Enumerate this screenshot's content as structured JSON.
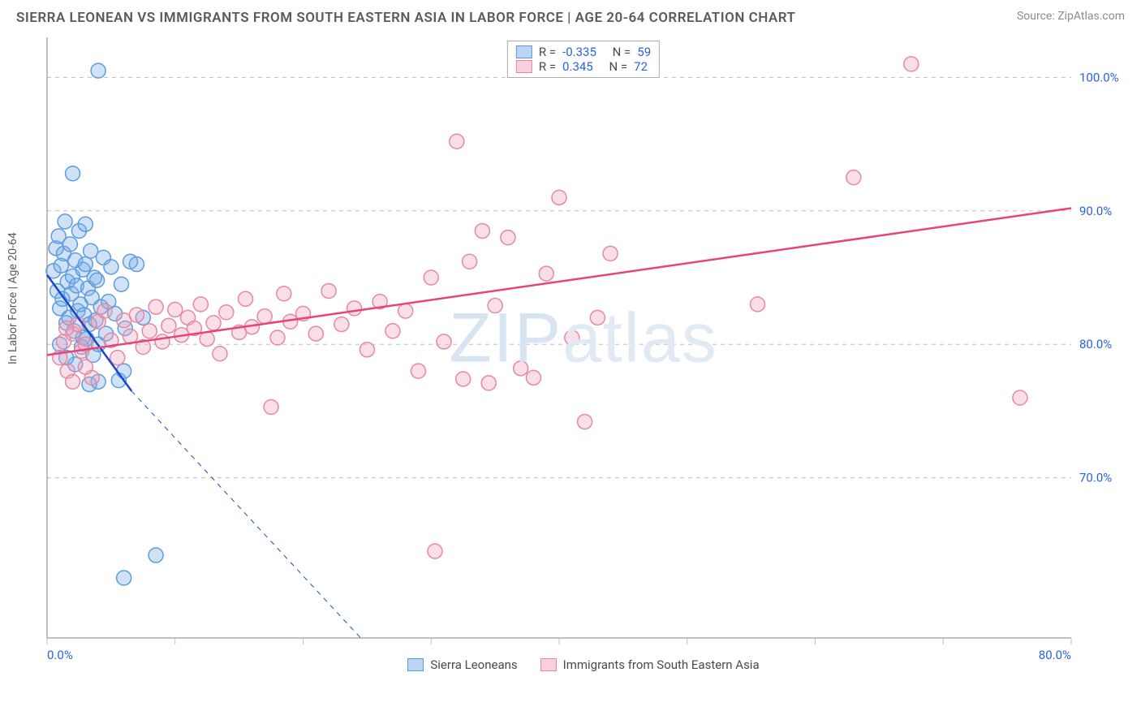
{
  "title": "SIERRA LEONEAN VS IMMIGRANTS FROM SOUTH EASTERN ASIA IN LABOR FORCE | AGE 20-64 CORRELATION CHART",
  "source_label": "Source: ZipAtlas.com",
  "watermark": "ZIPatlas",
  "y_axis_label": "In Labor Force | Age 20-64",
  "chart": {
    "type": "scatter",
    "background_color": "#ffffff",
    "grid_color": "#bfbfbf",
    "grid_dash": "5 5",
    "xlim": [
      0,
      80
    ],
    "ylim": [
      58,
      103
    ],
    "y_gridlines": [
      70,
      80,
      90,
      100
    ],
    "y_tick_labels": [
      "70.0%",
      "80.0%",
      "90.0%",
      "100.0%"
    ],
    "y_tick_fontsize": 15,
    "y_tick_color": "#2863e0",
    "x_ticks": [
      0,
      10,
      20,
      30,
      40,
      50,
      60,
      70,
      80
    ],
    "x_tick_labels_shown": {
      "0": "0.0%",
      "80": "80.0%"
    },
    "x_tick_fontsize": 15,
    "x_tick_color": "#2863e0",
    "marker_radius": 9,
    "marker_stroke_width": 1.5,
    "regression_line_width": 2.5,
    "series": [
      {
        "key": "blue",
        "label": "Sierra Leoneans",
        "n": 59,
        "r": -0.335,
        "fill_color": "rgba(122,172,232,0.35)",
        "stroke_color": "#5a9de0",
        "regression_color": "#1648c8",
        "regression_solid": {
          "x1": 0,
          "y1": 85.2,
          "x2": 6.6,
          "y2": 76.5
        },
        "regression_dash": {
          "x1": 6.6,
          "y1": 76.5,
          "x2": 24.5,
          "y2": 58
        },
        "points": [
          [
            0.5,
            85.5
          ],
          [
            0.7,
            87.2
          ],
          [
            0.8,
            84.0
          ],
          [
            0.9,
            88.1
          ],
          [
            1.0,
            82.7
          ],
          [
            1.1,
            85.9
          ],
          [
            1.2,
            83.4
          ],
          [
            1.3,
            86.8
          ],
          [
            1.4,
            89.2
          ],
          [
            1.5,
            81.6
          ],
          [
            1.6,
            84.7
          ],
          [
            1.7,
            82.0
          ],
          [
            1.8,
            87.5
          ],
          [
            1.9,
            83.8
          ],
          [
            2.0,
            85.1
          ],
          [
            2.1,
            81.0
          ],
          [
            2.2,
            86.3
          ],
          [
            2.3,
            84.4
          ],
          [
            2.4,
            82.5
          ],
          [
            2.5,
            88.5
          ],
          [
            2.6,
            83.0
          ],
          [
            2.7,
            79.8
          ],
          [
            2.8,
            85.6
          ],
          [
            2.9,
            82.2
          ],
          [
            3.0,
            86.0
          ],
          [
            3.1,
            80.4
          ],
          [
            3.2,
            84.2
          ],
          [
            3.3,
            81.5
          ],
          [
            3.4,
            87.0
          ],
          [
            3.5,
            83.5
          ],
          [
            3.6,
            79.2
          ],
          [
            3.7,
            85.0
          ],
          [
            3.8,
            81.8
          ],
          [
            3.9,
            84.8
          ],
          [
            4.0,
            80.0
          ],
          [
            4.2,
            82.8
          ],
          [
            4.4,
            86.5
          ],
          [
            4.6,
            80.8
          ],
          [
            4.8,
            83.2
          ],
          [
            5.0,
            85.8
          ],
          [
            5.3,
            82.3
          ],
          [
            5.6,
            77.3
          ],
          [
            5.8,
            84.5
          ],
          [
            6.1,
            81.2
          ],
          [
            6.5,
            86.2
          ],
          [
            2.0,
            92.8
          ],
          [
            4.0,
            100.5
          ],
          [
            3.3,
            77.0
          ],
          [
            4.0,
            77.2
          ],
          [
            6.0,
            78.0
          ],
          [
            7.0,
            86.0
          ],
          [
            7.5,
            82.0
          ],
          [
            8.5,
            64.2
          ],
          [
            6.0,
            62.5
          ],
          [
            1.0,
            80.0
          ],
          [
            2.2,
            78.5
          ],
          [
            3.0,
            89.0
          ],
          [
            1.5,
            79.0
          ],
          [
            2.8,
            80.5
          ]
        ]
      },
      {
        "key": "pink",
        "label": "Immigants from South Eastern Asia",
        "label_display": "Immigrants from South Eastern Asia",
        "n": 72,
        "r": 0.345,
        "fill_color": "rgba(244,164,188,0.35)",
        "stroke_color": "#e8889f",
        "regression_color": "#e8437a",
        "regression_solid": {
          "x1": 0,
          "y1": 79.2,
          "x2": 80,
          "y2": 90.2
        },
        "points": [
          [
            1.0,
            79.0
          ],
          [
            1.3,
            80.2
          ],
          [
            1.6,
            78.0
          ],
          [
            2.0,
            80.8
          ],
          [
            2.4,
            81.5
          ],
          [
            2.7,
            79.5
          ],
          [
            3.0,
            80.0
          ],
          [
            3.5,
            77.5
          ],
          [
            4.0,
            81.7
          ],
          [
            4.5,
            82.5
          ],
          [
            5.0,
            80.3
          ],
          [
            5.5,
            79.0
          ],
          [
            6.0,
            81.8
          ],
          [
            6.5,
            80.6
          ],
          [
            7.0,
            82.2
          ],
          [
            7.5,
            79.8
          ],
          [
            8.0,
            81.0
          ],
          [
            8.5,
            82.8
          ],
          [
            9.0,
            80.2
          ],
          [
            9.5,
            81.4
          ],
          [
            10.0,
            82.6
          ],
          [
            10.5,
            80.7
          ],
          [
            11.0,
            82.0
          ],
          [
            11.5,
            81.2
          ],
          [
            12.0,
            83.0
          ],
          [
            12.5,
            80.4
          ],
          [
            13.0,
            81.6
          ],
          [
            13.5,
            79.3
          ],
          [
            14.0,
            82.4
          ],
          [
            15.0,
            80.9
          ],
          [
            15.5,
            83.4
          ],
          [
            16.0,
            81.3
          ],
          [
            17.0,
            82.1
          ],
          [
            17.5,
            75.3
          ],
          [
            18.0,
            80.5
          ],
          [
            18.5,
            83.8
          ],
          [
            19.0,
            81.7
          ],
          [
            20.0,
            82.3
          ],
          [
            21.0,
            80.8
          ],
          [
            22.0,
            84.0
          ],
          [
            23.0,
            81.5
          ],
          [
            24.0,
            82.7
          ],
          [
            25.0,
            79.6
          ],
          [
            26.0,
            83.2
          ],
          [
            27.0,
            81.0
          ],
          [
            28.0,
            82.5
          ],
          [
            29.0,
            78.0
          ],
          [
            30.0,
            85.0
          ],
          [
            30.3,
            64.5
          ],
          [
            31.0,
            80.2
          ],
          [
            32.0,
            95.2
          ],
          [
            32.5,
            77.4
          ],
          [
            33.0,
            86.2
          ],
          [
            34.0,
            88.5
          ],
          [
            34.5,
            77.1
          ],
          [
            35.0,
            82.9
          ],
          [
            36.0,
            88.0
          ],
          [
            37.0,
            78.2
          ],
          [
            38.0,
            77.5
          ],
          [
            39.0,
            85.3
          ],
          [
            40.0,
            91.0
          ],
          [
            41.0,
            80.5
          ],
          [
            42.0,
            74.2
          ],
          [
            43.0,
            82.0
          ],
          [
            44.0,
            86.8
          ],
          [
            55.5,
            83.0
          ],
          [
            63.0,
            92.5
          ],
          [
            67.5,
            101.0
          ],
          [
            76.0,
            76.0
          ],
          [
            2.0,
            77.2
          ],
          [
            3.0,
            78.3
          ],
          [
            1.5,
            81.2
          ]
        ]
      }
    ]
  },
  "legend_top": {
    "rows": [
      {
        "swatch": "blue",
        "r_label": "R =",
        "r_val": "-0.335",
        "n_label": "N =",
        "n_val": "59"
      },
      {
        "swatch": "pink",
        "r_label": "R =",
        "r_val": " 0.345",
        "n_label": "N =",
        "n_val": "72"
      }
    ]
  },
  "legend_bottom": {
    "items": [
      {
        "swatch": "blue",
        "label": "Sierra Leoneans"
      },
      {
        "swatch": "pink",
        "label": "Immigrants from South Eastern Asia"
      }
    ]
  }
}
